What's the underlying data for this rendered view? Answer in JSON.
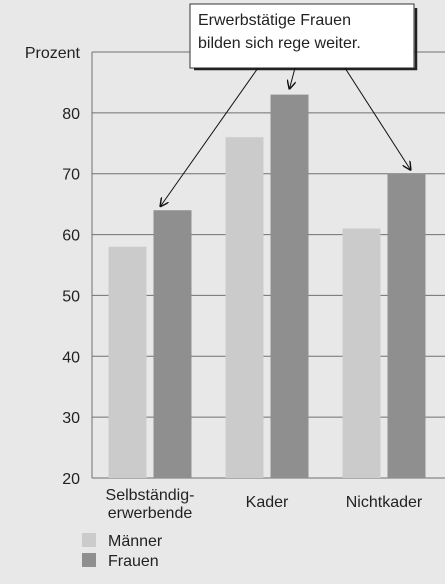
{
  "chart_data": {
    "type": "bar",
    "categories": [
      [
        "Selbständig-",
        "erwerbende"
      ],
      [
        "Kader"
      ],
      [
        "Nichtkader"
      ]
    ],
    "series": [
      {
        "name": "Männer",
        "values": [
          58,
          76,
          61
        ],
        "color": "#cbcbcb"
      },
      {
        "name": "Frauen",
        "values": [
          64,
          83,
          70
        ],
        "color": "#8f8f8f"
      }
    ],
    "ylabel": "Prozent",
    "ylim": [
      20,
      90
    ],
    "yticks": [
      20,
      30,
      40,
      50,
      60,
      70,
      80
    ],
    "grid": true,
    "legend_position": "bottom-left",
    "annotation": {
      "lines": [
        "Erwerbstätige Frauen",
        "bilden sich rege weiter."
      ],
      "points_to": "Frauen"
    }
  }
}
